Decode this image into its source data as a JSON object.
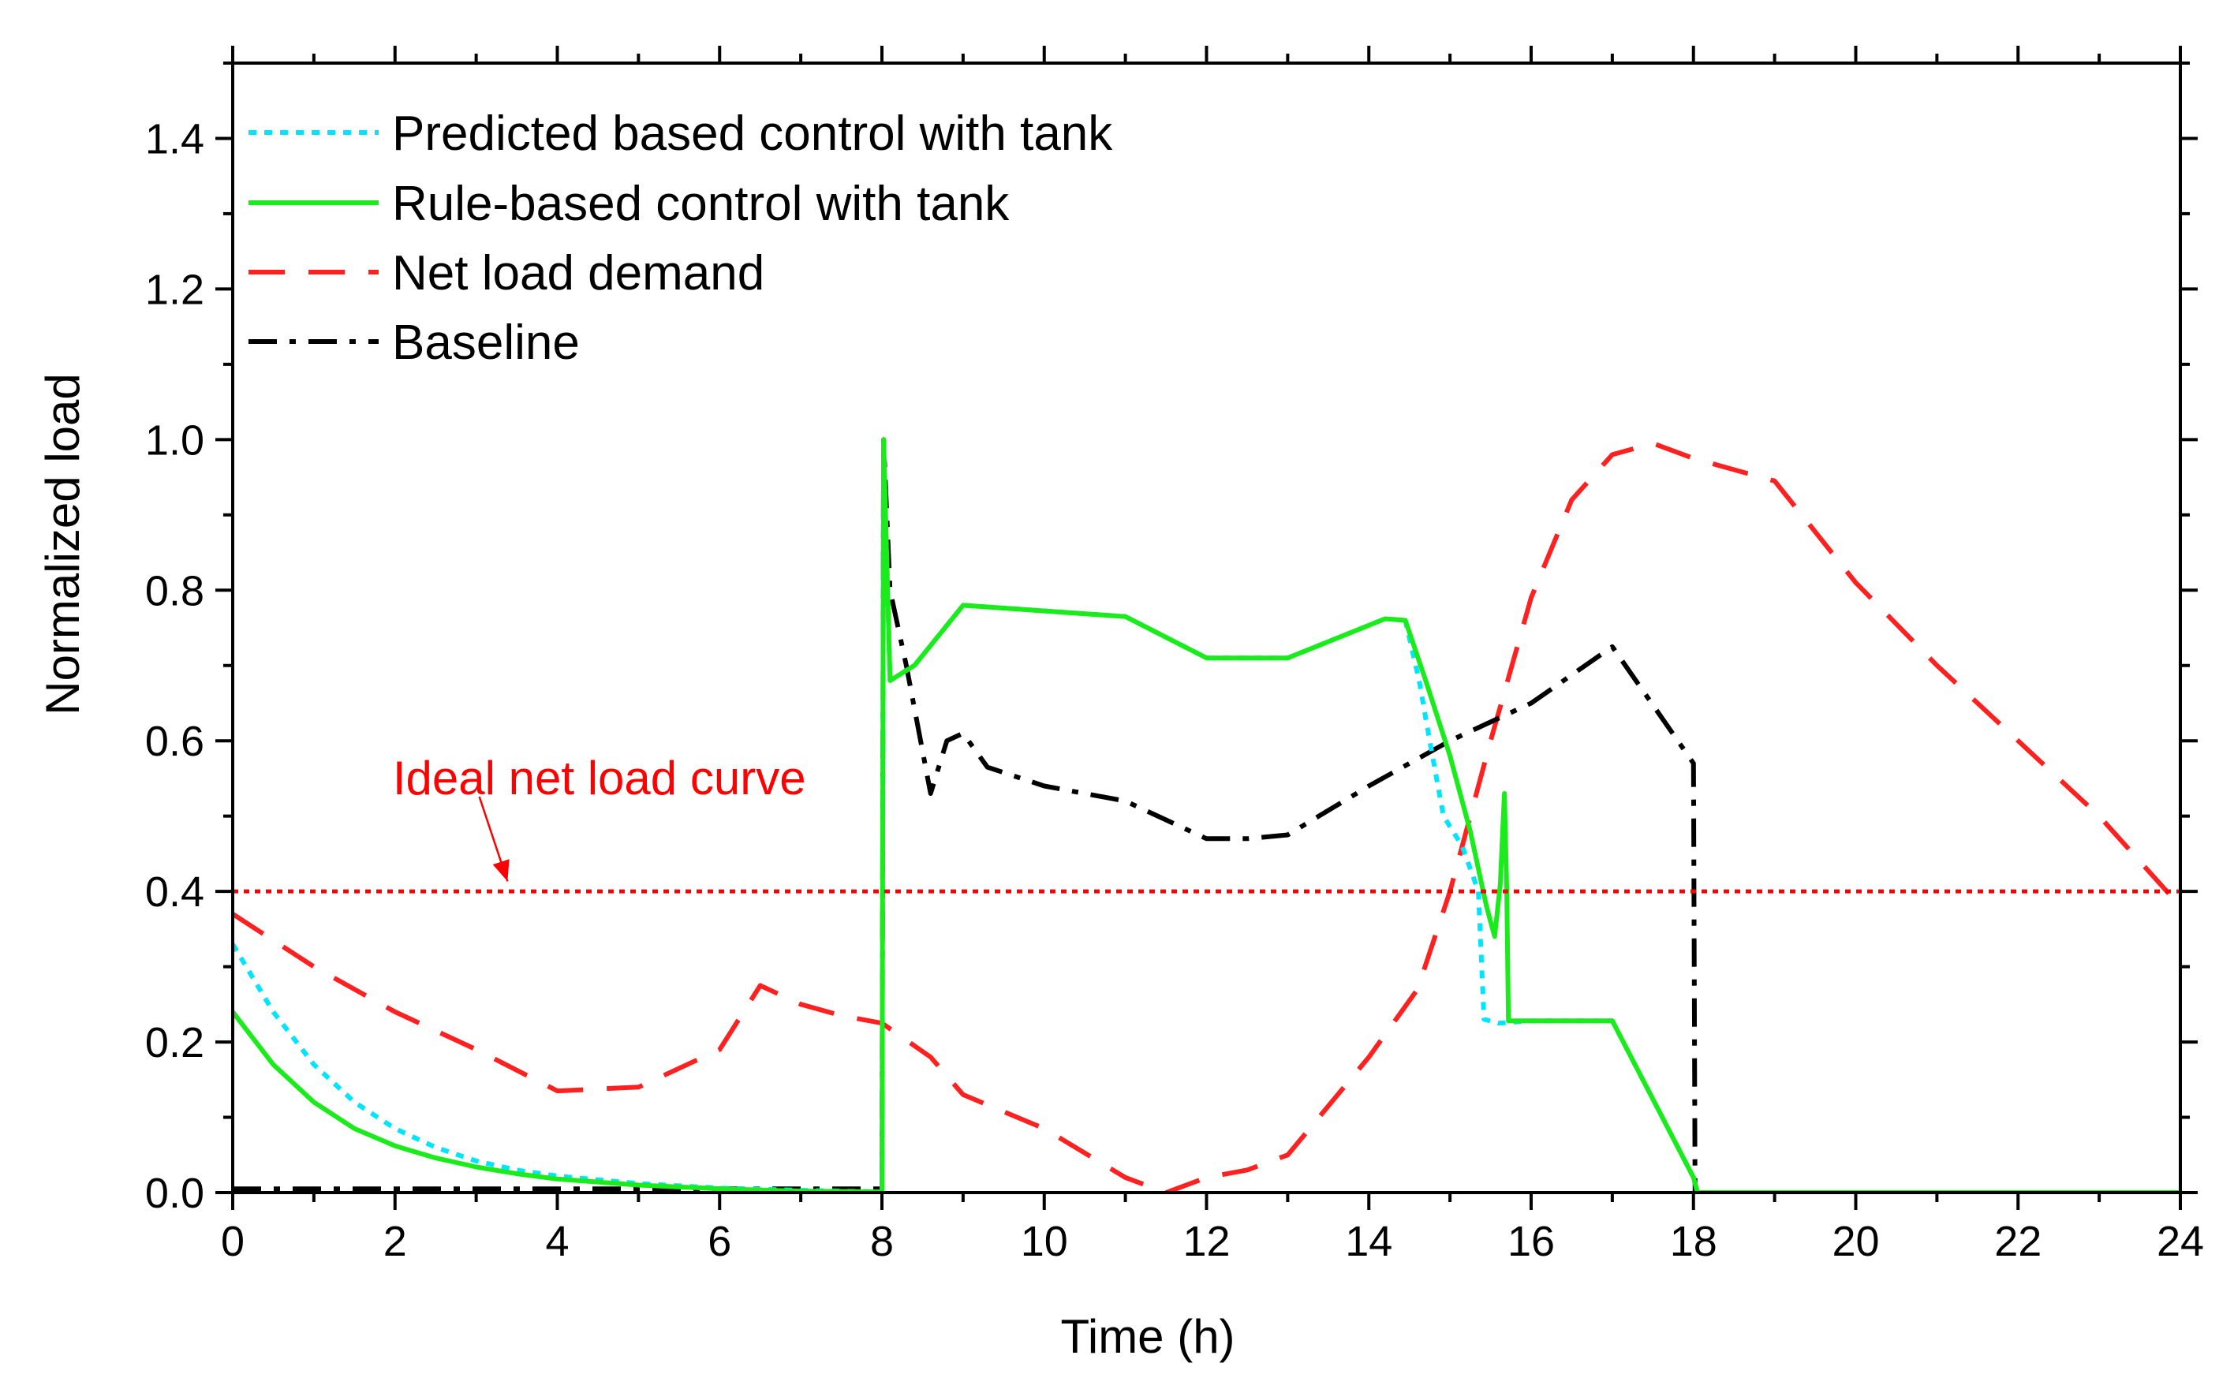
{
  "chart_data": {
    "type": "line",
    "title": "",
    "xlabel": "Time (h)",
    "ylabel": "Normalized load",
    "xlim": [
      0,
      24
    ],
    "ylim": [
      0,
      1.5
    ],
    "xticks": [
      0,
      2,
      4,
      6,
      8,
      10,
      12,
      14,
      16,
      18,
      20,
      22,
      24
    ],
    "xtick_labels": [
      "0",
      "2",
      "4",
      "6",
      "8",
      "10",
      "12",
      "14",
      "16",
      "18",
      "20",
      "22",
      "24"
    ],
    "yticks": [
      0,
      0.2,
      0.4,
      0.6,
      0.8,
      1.0,
      1.2,
      1.4
    ],
    "ytick_labels": [
      "0.0",
      "0.2",
      "0.4",
      "0.6",
      "0.8",
      "1.0",
      "1.2",
      "1.4"
    ],
    "grid": false,
    "legend_position": "top-left",
    "series": [
      {
        "name": "Predicted based control with tank",
        "color": "#00e5ff",
        "dash": "dotted",
        "points": [
          [
            0,
            0.33
          ],
          [
            0.5,
            0.24
          ],
          [
            1,
            0.17
          ],
          [
            1.5,
            0.12
          ],
          [
            2,
            0.085
          ],
          [
            2.5,
            0.06
          ],
          [
            3,
            0.042
          ],
          [
            3.5,
            0.03
          ],
          [
            4,
            0.022
          ],
          [
            5,
            0.012
          ],
          [
            6,
            0.006
          ],
          [
            7,
            0.003
          ],
          [
            8,
            0.001
          ],
          [
            8.02,
            1.0
          ],
          [
            8.1,
            0.68
          ],
          [
            8.4,
            0.7
          ],
          [
            9,
            0.78
          ],
          [
            11,
            0.765
          ],
          [
            12,
            0.71
          ],
          [
            13,
            0.71
          ],
          [
            14.2,
            0.762
          ],
          [
            14.45,
            0.76
          ],
          [
            14.62,
            0.68
          ],
          [
            14.75,
            0.6
          ],
          [
            14.92,
            0.5
          ],
          [
            15.15,
            0.46
          ],
          [
            15.35,
            0.4
          ],
          [
            15.42,
            0.23
          ],
          [
            15.6,
            0.225
          ],
          [
            16.0,
            0.228
          ],
          [
            17.0,
            0.228
          ],
          [
            18,
            0.02
          ],
          [
            18.05,
            0.0
          ],
          [
            24,
            0.0
          ]
        ]
      },
      {
        "name": "Rule-based control with tank",
        "color": "#1aeb1a",
        "dash": "solid",
        "points": [
          [
            0,
            0.24
          ],
          [
            0.5,
            0.17
          ],
          [
            1,
            0.12
          ],
          [
            1.5,
            0.085
          ],
          [
            2,
            0.062
          ],
          [
            2.5,
            0.046
          ],
          [
            3,
            0.034
          ],
          [
            3.5,
            0.025
          ],
          [
            4,
            0.018
          ],
          [
            5,
            0.01
          ],
          [
            6,
            0.005
          ],
          [
            7,
            0.002
          ],
          [
            8,
            0.001
          ],
          [
            8.02,
            1.0
          ],
          [
            8.1,
            0.68
          ],
          [
            8.4,
            0.7
          ],
          [
            9,
            0.78
          ],
          [
            11,
            0.765
          ],
          [
            12,
            0.71
          ],
          [
            13,
            0.71
          ],
          [
            14.2,
            0.762
          ],
          [
            14.45,
            0.76
          ],
          [
            14.7,
            0.68
          ],
          [
            15.0,
            0.58
          ],
          [
            15.25,
            0.48
          ],
          [
            15.45,
            0.38
          ],
          [
            15.55,
            0.34
          ],
          [
            15.62,
            0.41
          ],
          [
            15.67,
            0.53
          ],
          [
            15.7,
            0.4
          ],
          [
            15.72,
            0.228
          ],
          [
            17.0,
            0.228
          ],
          [
            18,
            0.02
          ],
          [
            18.05,
            0.0
          ],
          [
            24,
            0.0
          ]
        ]
      },
      {
        "name": "Net load demand",
        "color": "#ff2020",
        "dash": "dashed",
        "points": [
          [
            0,
            0.37
          ],
          [
            1,
            0.3
          ],
          [
            2,
            0.24
          ],
          [
            3,
            0.19
          ],
          [
            4,
            0.135
          ],
          [
            5,
            0.14
          ],
          [
            6,
            0.19
          ],
          [
            6.5,
            0.275
          ],
          [
            7,
            0.25
          ],
          [
            7.5,
            0.235
          ],
          [
            8,
            0.225
          ],
          [
            8.6,
            0.18
          ],
          [
            9,
            0.13
          ],
          [
            10,
            0.085
          ],
          [
            11,
            0.02
          ],
          [
            11.5,
            0.0
          ],
          [
            12,
            0.02
          ],
          [
            12.5,
            0.03
          ],
          [
            13,
            0.05
          ],
          [
            14,
            0.18
          ],
          [
            14.6,
            0.27
          ],
          [
            15,
            0.4
          ],
          [
            15.5,
            0.6
          ],
          [
            16,
            0.79
          ],
          [
            16.5,
            0.92
          ],
          [
            17,
            0.98
          ],
          [
            17.5,
            0.995
          ],
          [
            18,
            0.975
          ],
          [
            19,
            0.945
          ],
          [
            20,
            0.81
          ],
          [
            21,
            0.7
          ],
          [
            22,
            0.6
          ],
          [
            23,
            0.5
          ],
          [
            24,
            0.38
          ]
        ]
      },
      {
        "name": "Baseline",
        "color": "#000000",
        "dash": "dashdot",
        "points": [
          [
            0,
            0.005
          ],
          [
            8,
            0.005
          ],
          [
            8.02,
            1.0
          ],
          [
            8.1,
            0.8
          ],
          [
            8.3,
            0.7
          ],
          [
            8.6,
            0.53
          ],
          [
            8.8,
            0.6
          ],
          [
            9,
            0.61
          ],
          [
            9.3,
            0.565
          ],
          [
            10,
            0.54
          ],
          [
            11,
            0.52
          ],
          [
            12,
            0.47
          ],
          [
            12.5,
            0.47
          ],
          [
            13,
            0.475
          ],
          [
            14,
            0.54
          ],
          [
            15,
            0.6
          ],
          [
            16,
            0.65
          ],
          [
            17,
            0.725
          ],
          [
            18,
            0.57
          ],
          [
            18.02,
            0.0
          ],
          [
            24,
            0.0
          ]
        ]
      }
    ],
    "reference_line": {
      "y": 0.4,
      "color": "#ff0000",
      "dash": "dotted"
    },
    "annotations": [
      {
        "text": "Ideal net load curve",
        "color": "#ff0000",
        "text_at": [
          1,
          0.55
        ],
        "arrow_from": [
          4.4,
          0.51
        ],
        "arrow_to": [
          4.65,
          0.405
        ]
      }
    ]
  }
}
